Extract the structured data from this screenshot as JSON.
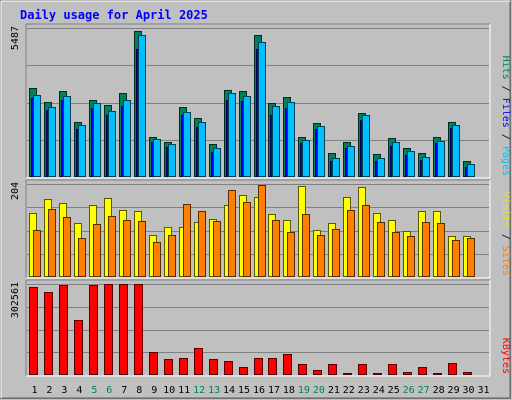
{
  "chart_data": {
    "type": "bar",
    "title": "Daily usage for April 2025",
    "categories": [
      "1",
      "2",
      "3",
      "4",
      "5",
      "6",
      "7",
      "8",
      "9",
      "10",
      "11",
      "12",
      "13",
      "14",
      "15",
      "16",
      "17",
      "18",
      "19",
      "20",
      "21",
      "22",
      "23",
      "24",
      "25",
      "26",
      "27",
      "28",
      "29",
      "30",
      "31"
    ],
    "weekend_days": [
      "5",
      "6",
      "12",
      "13",
      "19",
      "20",
      "26",
      "27"
    ],
    "panels": [
      {
        "id": "hits-files-pages",
        "max_label": "5487",
        "max_value": 5487,
        "axis_labels": [
          {
            "text": "Hits",
            "color": "#00805c"
          },
          {
            "text": "Files",
            "color": "#0000ff"
          },
          {
            "text": "Pages",
            "color": "#00c0ff"
          }
        ],
        "series": [
          {
            "name": "Hits",
            "color": "#00805c",
            "values": [
              3290,
              2760,
              3180,
              2040,
              2850,
              2650,
              3090,
              5370,
              1480,
              1290,
              2580,
              2160,
              1210,
              3220,
              3170,
              5240,
              2730,
              2940,
              1460,
              2000,
              870,
              1280,
              2370,
              850,
              1420,
              1080,
              880,
              1490,
              2030,
              600,
              0
            ]
          },
          {
            "name": "Files",
            "color": "#0000ff",
            "values": [
              2900,
              2450,
              2850,
              1750,
              2550,
              2300,
              2600,
              4720,
              1290,
              1100,
              2300,
              1850,
              920,
              2820,
              2800,
              4700,
              2300,
              2550,
              1250,
              1750,
              600,
              1050,
              2100,
              600,
              1150,
              820,
              620,
              1250,
              1800,
              380,
              0
            ]
          },
          {
            "name": "Pages",
            "color": "#00c0ff",
            "values": [
              3020,
              2580,
              3000,
              1920,
              2740,
              2440,
              2850,
              5230,
              1400,
              1200,
              2390,
              2010,
              1050,
              3080,
              3000,
              4980,
              2600,
              2780,
              1380,
              1880,
              690,
              1150,
              2290,
              710,
              1280,
              950,
              720,
              1330,
              1920,
              470,
              0
            ]
          }
        ]
      },
      {
        "id": "visits-sites",
        "max_label": "204",
        "max_value": 204,
        "axis_labels": [
          {
            "text": "Visits",
            "color": "#f0e000"
          },
          {
            "text": "Sites",
            "color": "#ff8000"
          }
        ],
        "series": [
          {
            "name": "Visits",
            "color": "#ffff00",
            "values": [
              140,
              172,
              162,
              118,
              157,
              174,
              146,
              144,
              92,
              110,
              110,
              120,
              128,
              157,
              180,
              176,
              138,
              124,
              200,
              104,
              118,
              176,
              198,
              140,
              124,
              100,
              144,
              144,
              90,
              90,
              0
            ]
          },
          {
            "name": "Sites",
            "color": "#ff8000",
            "values": [
              104,
              150,
              131,
              86,
              117,
              133,
              125,
              123,
              76,
              92,
              160,
              144,
              122,
              190,
              164,
              202,
              124,
              99,
              139,
              92,
              106,
              148,
              158,
              120,
              98,
              90,
              121,
              118,
              82,
              86,
              0
            ]
          }
        ]
      },
      {
        "id": "kbytes",
        "max_label": "302561",
        "max_value": 302561,
        "axis_labels": [
          {
            "text": "KBytes",
            "color": "#ff0000"
          }
        ],
        "series": [
          {
            "name": "KBytes",
            "color": "#ff0000",
            "values": [
              292000,
              275000,
              300000,
              182000,
              298000,
              301000,
              302561,
              302000,
              77000,
              52000,
              55000,
              90000,
              52000,
              48000,
              28000,
              57000,
              55000,
              70000,
              38000,
              16000,
              38000,
              8000,
              38000,
              7000,
              37000,
              9000,
              28000,
              7000,
              41000,
              10000,
              0
            ]
          }
        ]
      }
    ]
  }
}
